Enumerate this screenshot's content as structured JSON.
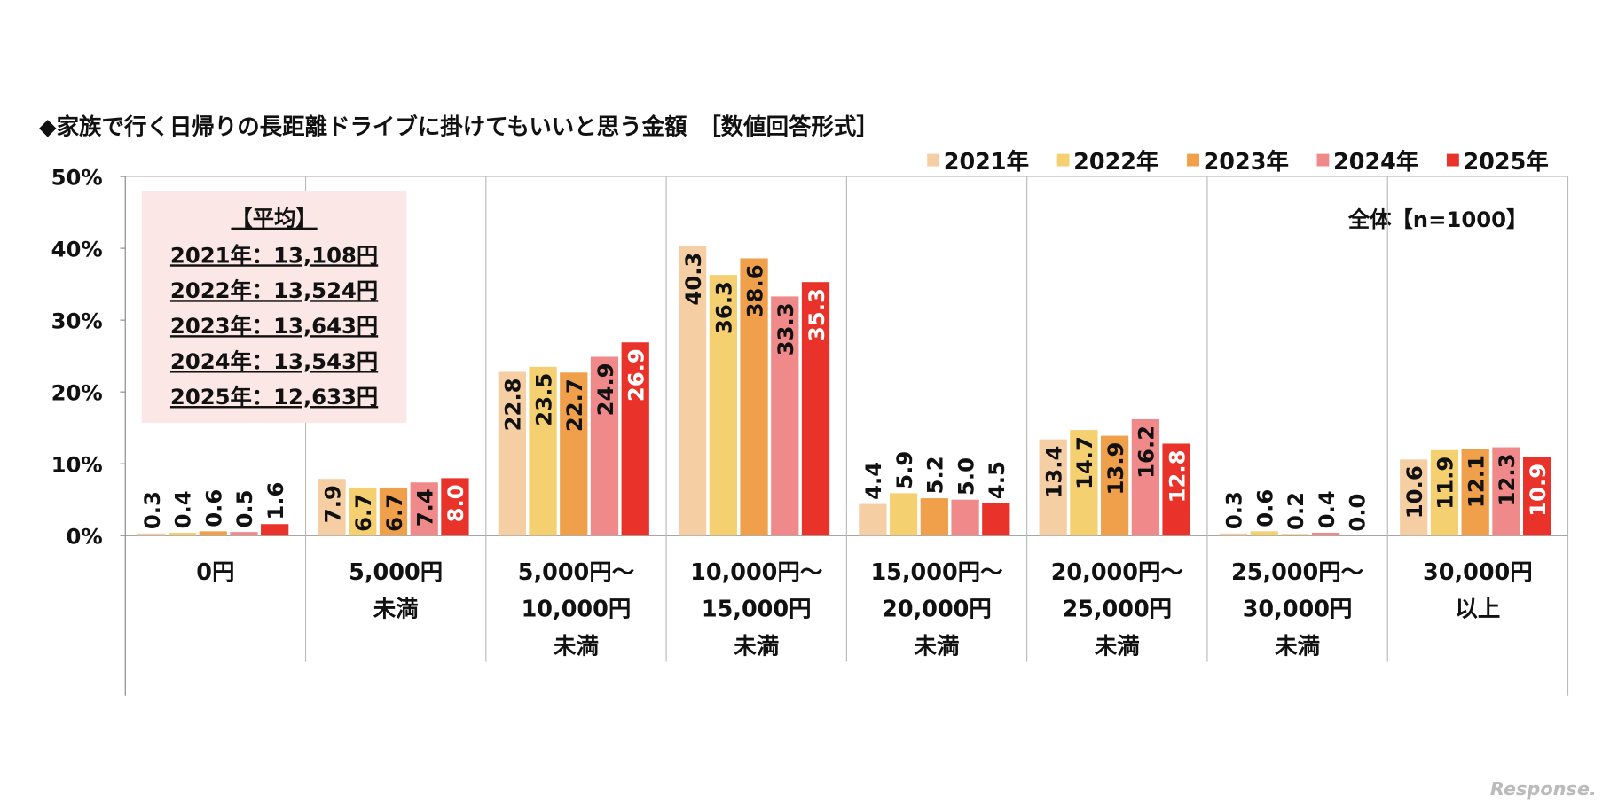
{
  "chart_data": {
    "type": "bar",
    "title": "◆家族で行く日帰りの長距離ドライブに掛けてもいいと思う金額　［数値回答形式］",
    "note": "全体【n=1000】",
    "watermark": "Response.",
    "annotation": {
      "title": "【平均】",
      "lines": [
        "2021年：13,108円",
        "2022年：13,524円",
        "2023年：13,643円",
        "2024年：13,543円",
        "2025年：12,633円"
      ]
    },
    "categories": [
      [
        "0円"
      ],
      [
        "5,000円",
        "未満"
      ],
      [
        "5,000円～",
        "10,000円",
        "未満"
      ],
      [
        "10,000円～",
        "15,000円",
        "未満"
      ],
      [
        "15,000円～",
        "20,000円",
        "未満"
      ],
      [
        "20,000円～",
        "25,000円",
        "未満"
      ],
      [
        "25,000円～",
        "30,000円",
        "未満"
      ],
      [
        "30,000円",
        "以上"
      ]
    ],
    "series": [
      {
        "name": "2021年",
        "color": "#f5cfa3",
        "label_color": "#111111",
        "values": [
          0.3,
          7.9,
          22.8,
          40.3,
          4.4,
          13.4,
          0.3,
          10.6
        ],
        "value_labels": [
          "0.3",
          "7.9",
          "22.8",
          "40.3",
          "4.4",
          "13.4",
          "0.3",
          "10.6"
        ]
      },
      {
        "name": "2022年",
        "color": "#f5d070",
        "label_color": "#111111",
        "values": [
          0.4,
          6.7,
          23.5,
          36.3,
          5.9,
          14.7,
          0.6,
          11.9
        ],
        "value_labels": [
          "0.4",
          "6.7",
          "23.5",
          "36.3",
          "5.9",
          "14.7",
          "0.6",
          "11.9"
        ]
      },
      {
        "name": "2023年",
        "color": "#f0a04b",
        "label_color": "#111111",
        "values": [
          0.6,
          6.7,
          22.7,
          38.6,
          5.2,
          13.9,
          0.2,
          12.1
        ],
        "value_labels": [
          "0.6",
          "6.7",
          "22.7",
          "38.6",
          "5.2",
          "13.9",
          "0.2",
          "12.1"
        ]
      },
      {
        "name": "2024年",
        "color": "#f08a8a",
        "label_color": "#111111",
        "values": [
          0.5,
          7.4,
          24.9,
          33.3,
          5.0,
          16.2,
          0.4,
          12.3
        ],
        "value_labels": [
          "0.5",
          "7.4",
          "24.9",
          "33.3",
          "5.0",
          "16.2",
          "0.4",
          "12.3"
        ]
      },
      {
        "name": "2025年",
        "color": "#e8322a",
        "label_color": "#ffffff",
        "values": [
          1.6,
          8.0,
          26.9,
          35.3,
          4.5,
          12.8,
          0.0,
          10.9
        ],
        "value_labels": [
          "1.6",
          "8.0",
          "26.9",
          "35.3",
          "4.5",
          "12.8",
          "0.0",
          "10.9"
        ]
      }
    ],
    "ylim": [
      0,
      50
    ],
    "yticks": [
      {
        "value": 0,
        "label": "0%"
      },
      {
        "value": 10,
        "label": "10%"
      },
      {
        "value": 20,
        "label": "20%"
      },
      {
        "value": 30,
        "label": "30%"
      },
      {
        "value": 40,
        "label": "40%"
      },
      {
        "value": 50,
        "label": "50%"
      }
    ]
  }
}
